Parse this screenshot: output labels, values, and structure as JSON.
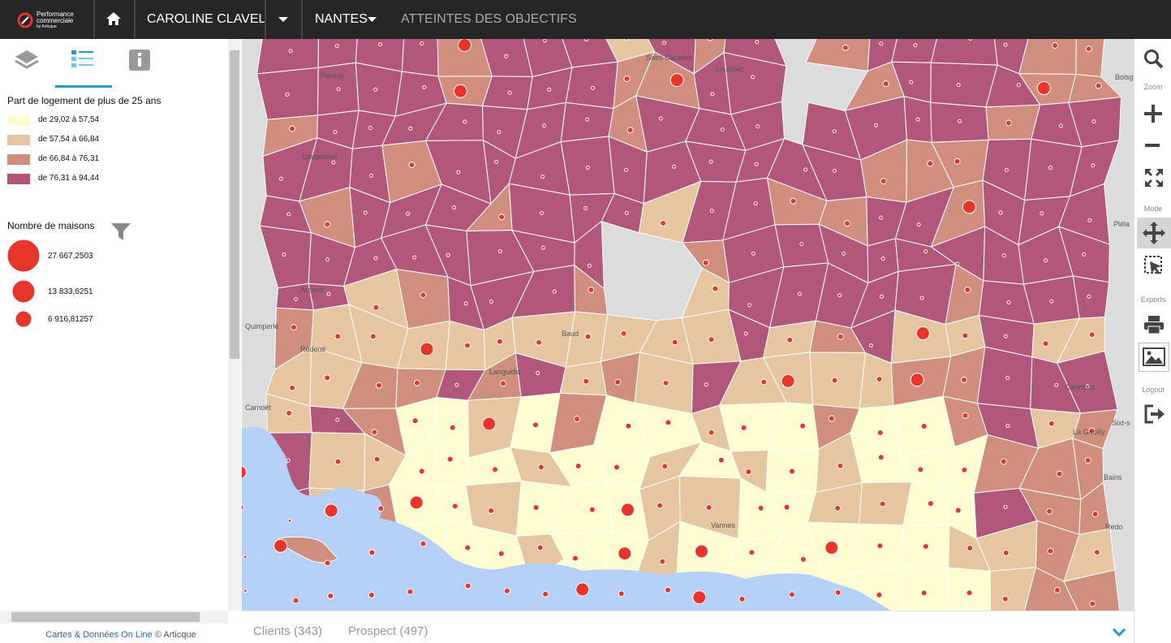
{
  "header": {
    "logo": [
      "Performance",
      "commerciale",
      "by Articque"
    ],
    "user": "CAROLINE CLAVEL",
    "region": "NANTES",
    "nav": "ATTEINTES DES OBJECTIFS"
  },
  "legend": {
    "title": "Part de logement de plus de 25 ans",
    "classes": [
      {
        "label": "de 29,02 à 57,54",
        "color": "#fefdd2"
      },
      {
        "label": "de 57,54 à 66,84",
        "color": "#e6c6a0"
      },
      {
        "label": "de 66,84 à 76,31",
        "color": "#cf8e7e"
      },
      {
        "label": "de 76,31 à 94,44",
        "color": "#b0577a"
      }
    ]
  },
  "size_legend": {
    "title": "Nombre de maisons",
    "items": [
      "27 667,2503",
      "13 833,6251",
      "6 916,81257"
    ]
  },
  "toolbar": {
    "zoom": "Zoom",
    "mode": "Mode",
    "exports": "Exports",
    "logout": "Logout"
  },
  "tabs": [
    "Clients (343)",
    "Prospect (497)"
  ],
  "footer": {
    "link": "Cartes & Données On Line",
    "copyright": "© Articque"
  },
  "map": {
    "labels": [
      "Saint-Caradec",
      "Loudéac",
      "Plouray",
      "Langonnet",
      "Arzano",
      "Quimperlé",
      "Rédené",
      "Carnoët",
      "Languidic",
      "Baud",
      "Vannes",
      "Carentoir",
      "La Gacilly",
      "Bains",
      "Redo",
      "Pléla",
      "Boisg",
      "Sixt-s"
    ]
  }
}
